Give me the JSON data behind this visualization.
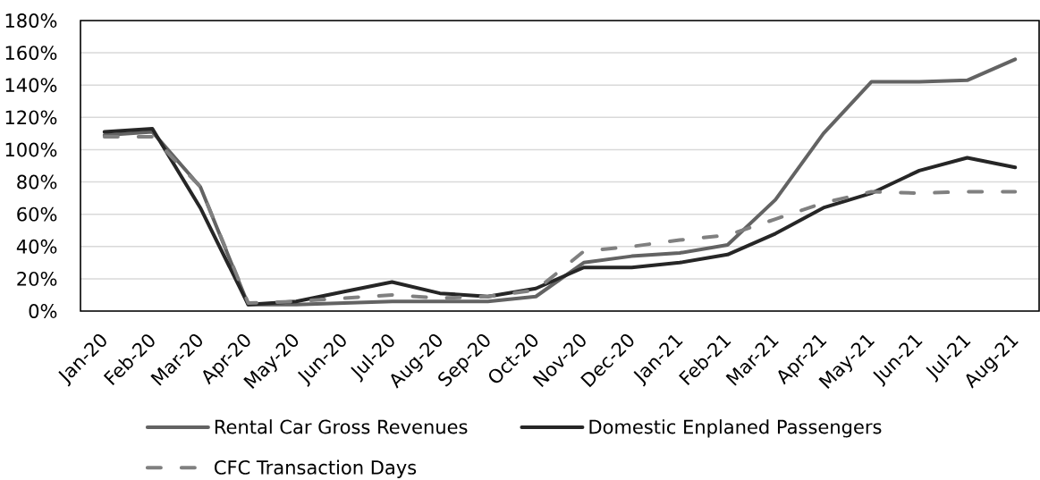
{
  "chart_data": {
    "type": "line",
    "categories": [
      "Jan-20",
      "Feb-20",
      "Mar-20",
      "Apr-20",
      "May-20",
      "Jun-20",
      "Jul-20",
      "Aug-20",
      "Sep-20",
      "Oct-20",
      "Nov-20",
      "Dec-20",
      "Jan-21",
      "Feb-21",
      "Mar-21",
      "Apr-21",
      "May-21",
      "Jun-21",
      "Jul-21",
      "Aug-21"
    ],
    "series": [
      {
        "name": "Rental Car Gross Revenues",
        "color": "#636363",
        "line_style": "solid",
        "values": [
          109,
          111,
          77,
          4,
          4,
          5,
          6,
          6,
          6,
          9,
          30,
          34,
          36,
          41,
          69,
          110,
          142,
          142,
          143,
          156
        ]
      },
      {
        "name": "Domestic Enplaned Passengers",
        "color": "#262626",
        "line_style": "solid",
        "values": [
          111,
          113,
          64,
          4,
          6,
          12,
          18,
          11,
          9,
          14,
          27,
          27,
          30,
          35,
          48,
          64,
          73,
          87,
          95,
          89
        ]
      },
      {
        "name": "CFC Transaction Days",
        "color": "#808080",
        "line_style": "dashed",
        "values": [
          108,
          108,
          77,
          5,
          6,
          8,
          10,
          8,
          9,
          13,
          37,
          40,
          44,
          47,
          57,
          67,
          74,
          73,
          74,
          74
        ]
      }
    ],
    "ylim": [
      0,
      180
    ],
    "yticks": [
      {
        "value": 0,
        "label": "0%"
      },
      {
        "value": 20,
        "label": "20%"
      },
      {
        "value": 40,
        "label": "40%"
      },
      {
        "value": 60,
        "label": "60%"
      },
      {
        "value": 80,
        "label": "80%"
      },
      {
        "value": 100,
        "label": "100%"
      },
      {
        "value": 120,
        "label": "120%"
      },
      {
        "value": 140,
        "label": "140%"
      },
      {
        "value": 160,
        "label": "160%"
      },
      {
        "value": 180,
        "label": "180%"
      }
    ],
    "grid": "y",
    "legend": "bottom"
  }
}
